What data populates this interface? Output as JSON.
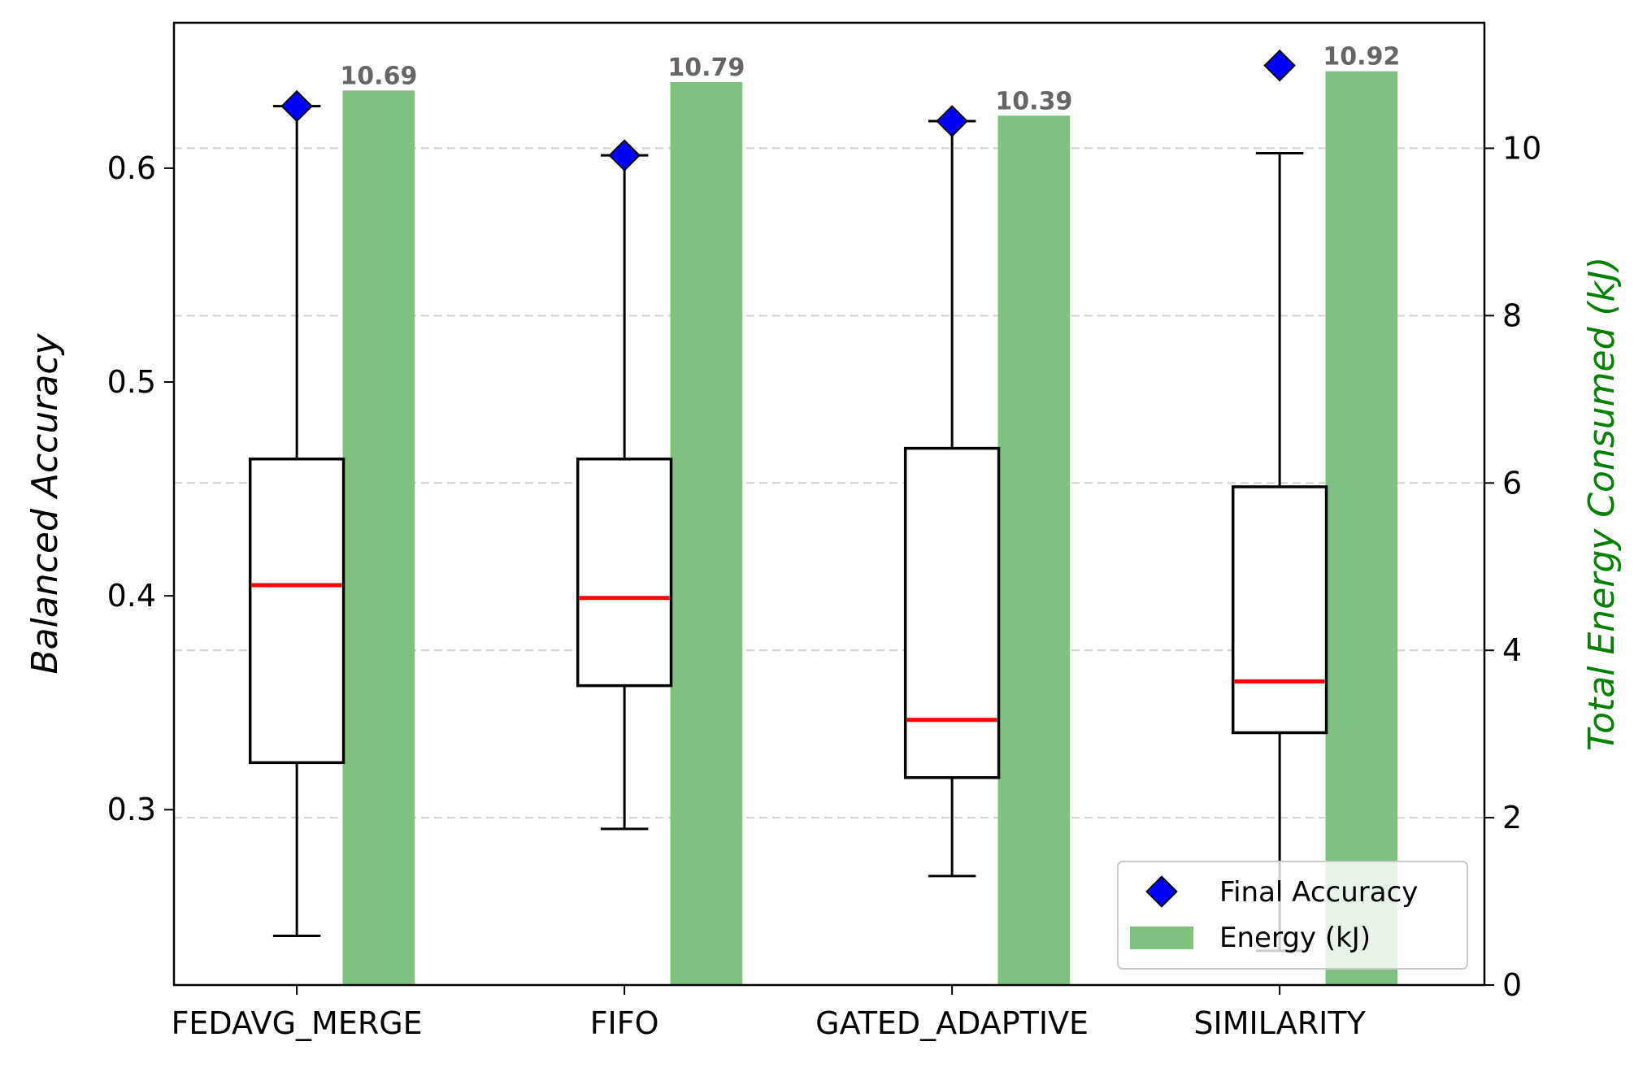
{
  "chart_data": {
    "type": "box+bar",
    "categories": [
      "FEDAVG_MERGE",
      "FIFO",
      "GATED_ADAPTIVE",
      "SIMILARITY"
    ],
    "ylabel": "Balanced Accuracy",
    "y2label": "Total Energy Consumed (kJ)",
    "ylim": [
      0.218,
      0.668
    ],
    "yticks": [
      0.3,
      0.4,
      0.5,
      0.6
    ],
    "ytick_labels": [
      "0.3",
      "0.4",
      "0.5",
      "0.6"
    ],
    "y2lim": [
      0,
      11.5
    ],
    "y2ticks": [
      0,
      2,
      4,
      6,
      8,
      10
    ],
    "y2tick_labels": [
      "0",
      "2",
      "4",
      "6",
      "8",
      "10"
    ],
    "grid": "horizontal dashed (right axis)",
    "legend_position": "lower-right",
    "boxes": [
      {
        "category": "FEDAVG_MERGE",
        "whislo": 0.241,
        "q1": 0.322,
        "median": 0.405,
        "q3": 0.464,
        "whishi": 0.629
      },
      {
        "category": "FIFO",
        "whislo": 0.291,
        "q1": 0.358,
        "median": 0.399,
        "q3": 0.464,
        "whishi": 0.606
      },
      {
        "category": "GATED_ADAPTIVE",
        "whislo": 0.269,
        "q1": 0.315,
        "median": 0.342,
        "q3": 0.469,
        "whishi": 0.622
      },
      {
        "category": "SIMILARITY",
        "whislo": 0.234,
        "q1": 0.336,
        "median": 0.36,
        "q3": 0.451,
        "whishi": 0.607
      }
    ],
    "final_accuracy": {
      "name": "Final Accuracy",
      "values": [
        0.629,
        0.606,
        0.622,
        0.648
      ],
      "color": "#0000ff"
    },
    "energy": {
      "name": "Energy (kJ)",
      "values": [
        10.69,
        10.79,
        10.39,
        10.92
      ],
      "labels": [
        "10.69",
        "10.79",
        "10.39",
        "10.92"
      ],
      "color": "#80c080"
    },
    "colors": {
      "median": "#ff0000",
      "box": "#000000",
      "right_axis_label": "#008000",
      "bar_label": "#666666",
      "grid": "#d3d3d3"
    }
  }
}
